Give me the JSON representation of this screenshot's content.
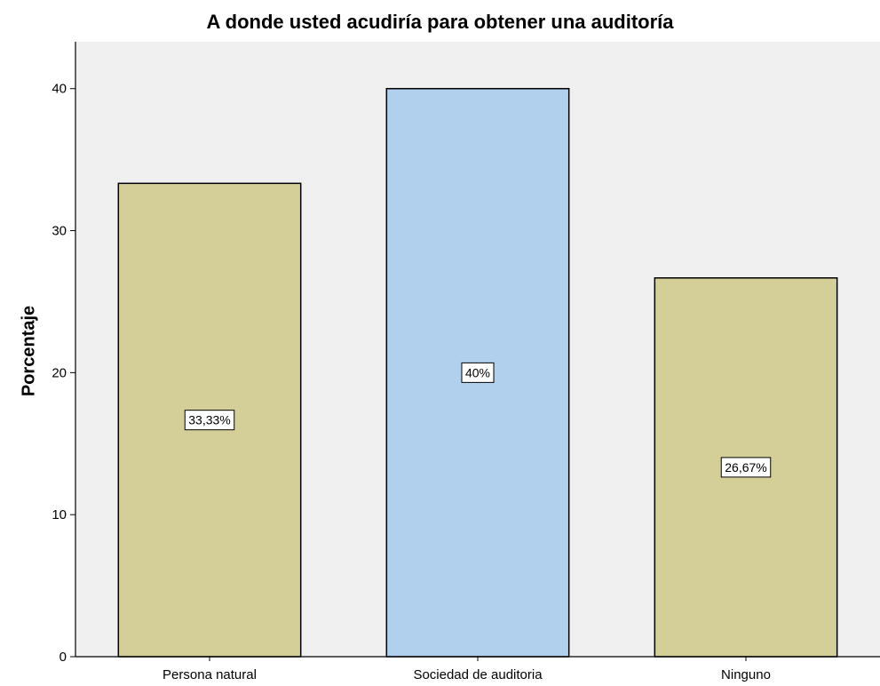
{
  "chart_data": {
    "type": "bar",
    "title": "A donde usted acudiría para obtener una auditoría",
    "xlabel": "",
    "ylabel": "Porcentaje",
    "categories": [
      "Persona natural",
      "Sociedad de auditoria",
      "Ninguno"
    ],
    "values": [
      33.33,
      40,
      26.67
    ],
    "data_labels": [
      "33,33%",
      "40%",
      "26,67%"
    ],
    "colors": [
      "#d4cf98",
      "#b0d0ee",
      "#d4cf98"
    ],
    "ylim": [
      0,
      43.3
    ],
    "yticks": [
      0,
      10,
      20,
      30,
      40
    ],
    "grid": false,
    "background": "#f0f0f0",
    "legend": "none"
  }
}
